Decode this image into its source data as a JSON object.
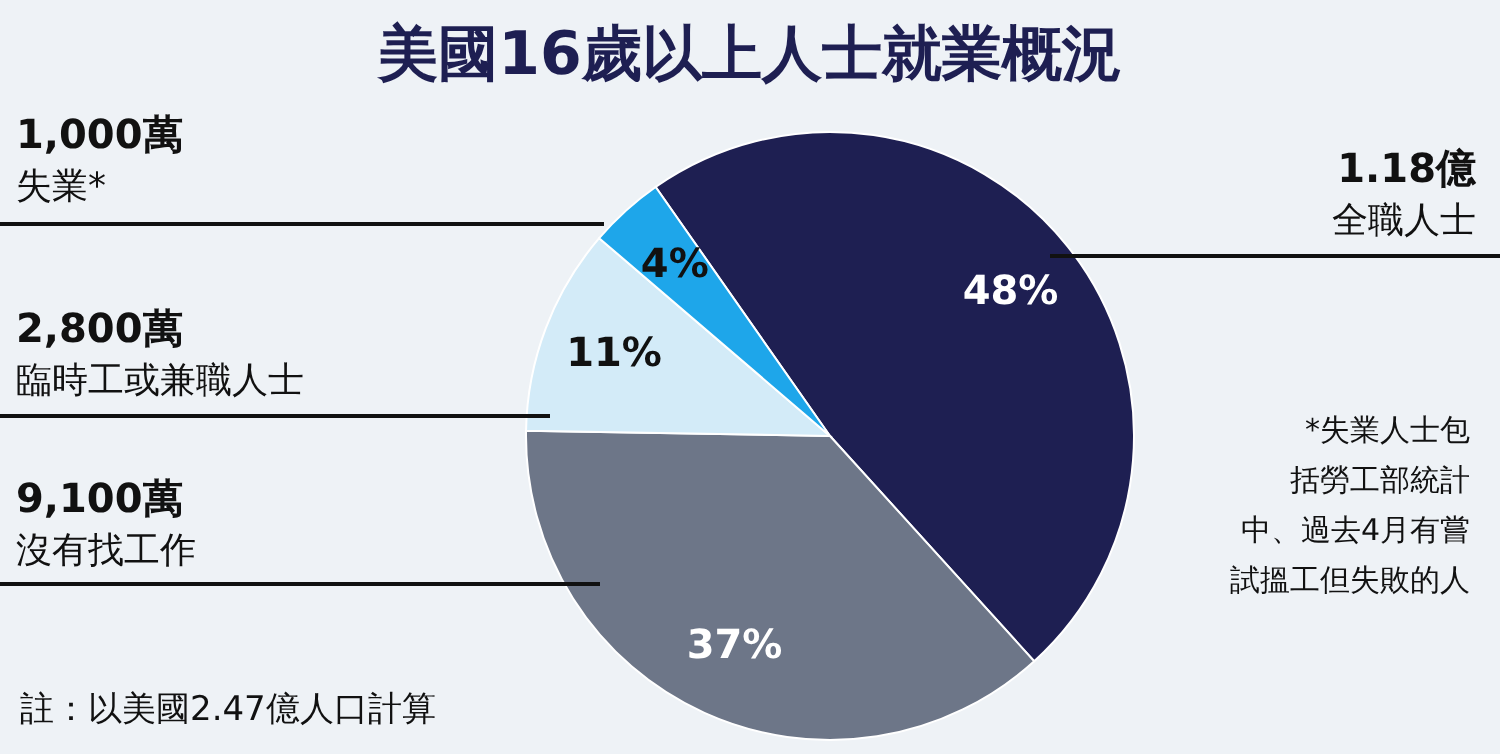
{
  "chart_data": {
    "type": "pie",
    "title": "美國16歲以上人士就業概況",
    "categories": [
      "全職人士",
      "沒有找工作",
      "臨時工或兼職人士",
      "失業*"
    ],
    "values": [
      48,
      37,
      11,
      4
    ],
    "colors": [
      "#1e1f52",
      "#6d7688",
      "#d3ebf8",
      "#1ea6ea"
    ],
    "value_labels": [
      "48%",
      "37%",
      "11%",
      "4%"
    ],
    "annotations": [
      "1.18億",
      "9,100萬",
      "2,800萬",
      "1,000萬",
      "*失業人士包括勞工部統計中、過去4月有嘗試搵工但失敗的人",
      "註：以美國2.47億人口計算"
    ]
  }
}
